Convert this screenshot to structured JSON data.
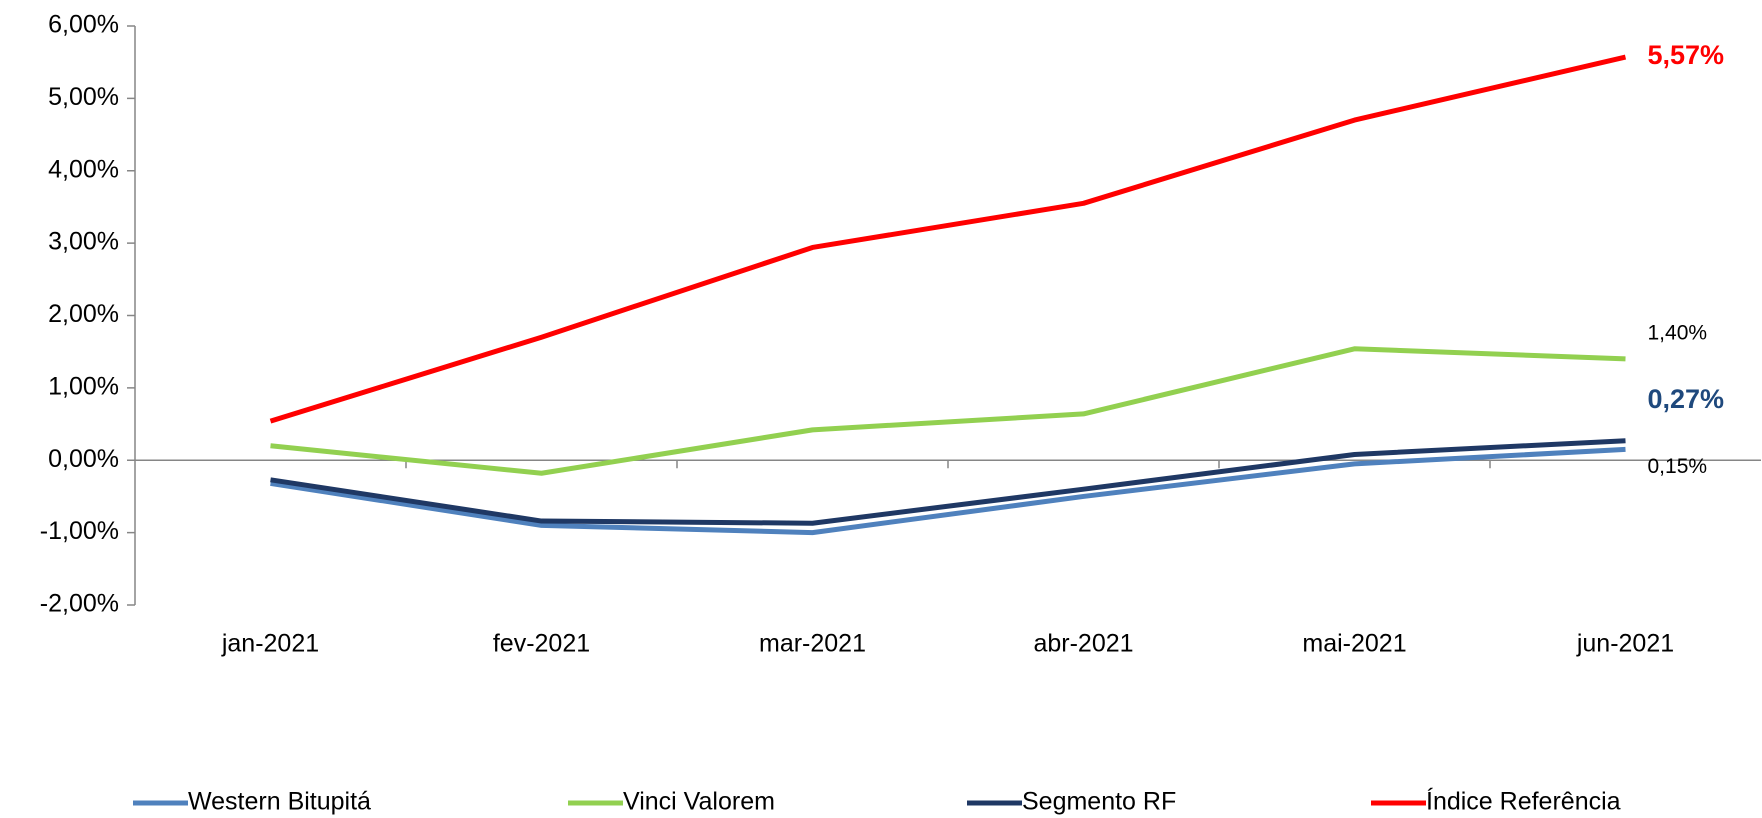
{
  "chart_data": {
    "type": "line",
    "categories": [
      "jan-2021",
      "fev-2021",
      "mar-2021",
      "abr-2021",
      "mai-2021",
      "jun-2021"
    ],
    "ylim": [
      -2,
      6
    ],
    "yticks": [
      {
        "value": -2,
        "label": "-2,00%"
      },
      {
        "value": -1,
        "label": "-1,00%"
      },
      {
        "value": 0,
        "label": "0,00%"
      },
      {
        "value": 1,
        "label": "1,00%"
      },
      {
        "value": 2,
        "label": "2,00%"
      },
      {
        "value": 3,
        "label": "3,00%"
      },
      {
        "value": 4,
        "label": "4,00%"
      },
      {
        "value": 5,
        "label": "5,00%"
      },
      {
        "value": 6,
        "label": "6,00%"
      }
    ],
    "grid": false,
    "legend": "bottom",
    "series": [
      {
        "name": "Western Bitupitá",
        "color": "#4f81bd",
        "values": [
          -0.32,
          -0.9,
          -1.0,
          -0.5,
          -0.05,
          0.15
        ],
        "value_labels": [
          null,
          null,
          null,
          null,
          null,
          "0,15%"
        ],
        "label_color": "#000000",
        "label_bold": false
      },
      {
        "name": "Vinci Valorem",
        "color": "#92d050",
        "values": [
          0.2,
          -0.18,
          0.42,
          0.64,
          1.54,
          1.4
        ],
        "value_labels": [
          null,
          null,
          null,
          null,
          null,
          "1,40%"
        ],
        "label_color": "#000000",
        "label_bold": false
      },
      {
        "name": "Segmento RF",
        "color": "#1f3864",
        "values": [
          -0.27,
          -0.84,
          -0.87,
          -0.4,
          0.08,
          0.27
        ],
        "value_labels": [
          null,
          null,
          null,
          null,
          null,
          "0,27%"
        ],
        "label_color": "#1f497d",
        "label_bold": true
      },
      {
        "name": "Índice Referência",
        "color": "#ff0000",
        "values": [
          0.54,
          1.7,
          2.94,
          3.55,
          4.7,
          5.57
        ],
        "value_labels": [
          null,
          null,
          null,
          null,
          null,
          "5,57%"
        ],
        "label_color": "#ff0000",
        "label_bold": true
      }
    ]
  }
}
